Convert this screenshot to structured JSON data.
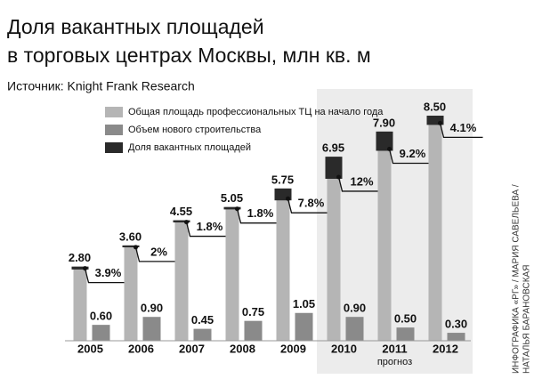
{
  "chart_data": {
    "type": "bar",
    "title": [
      "Доля вакантных площадей",
      "в торговых центрах Москвы, млн кв. м"
    ],
    "source": "Источник: Knight Frank Research",
    "categories": [
      "2005",
      "2006",
      "2007",
      "2008",
      "2009",
      "2010",
      "2011",
      "2012"
    ],
    "annotation": "прогноз",
    "credit": [
      "ИНФОГРАФИКА «РГ» / МАРИЯ САВЕЛЬЕВА /",
      "НАТАЛЬЯ БАРАНОВСКАЯ"
    ],
    "series": [
      {
        "name": "Общая площадь профессиональных ТЦ на начало года",
        "color": "#b5b5b5",
        "values": [
          2.8,
          3.6,
          4.55,
          5.05,
          5.75,
          6.95,
          7.9,
          8.5
        ],
        "value_labels": [
          "2.80",
          "3.60",
          "4.55",
          "5.05",
          "5.75",
          "6.95",
          "7.90",
          "8.50"
        ]
      },
      {
        "name": "Объем нового строительства",
        "color": "#8a8a8a",
        "values": [
          0.6,
          0.9,
          0.45,
          0.75,
          1.05,
          0.9,
          0.5,
          0.3
        ],
        "value_labels": [
          "0.60",
          "0.90",
          "0.45",
          "0.75",
          "1.05",
          "0.90",
          "0.50",
          "0.30"
        ]
      },
      {
        "name": "Доля вакантных площадей",
        "color": "#2a2a2a",
        "values": [
          3.9,
          2,
          1.8,
          1.8,
          7.8,
          12,
          9.2,
          4.1
        ],
        "value_labels": [
          "3.9%",
          "2%",
          "1.8%",
          "1.8%",
          "7.8%",
          "12%",
          "9.2%",
          "4.1%"
        ]
      }
    ]
  }
}
